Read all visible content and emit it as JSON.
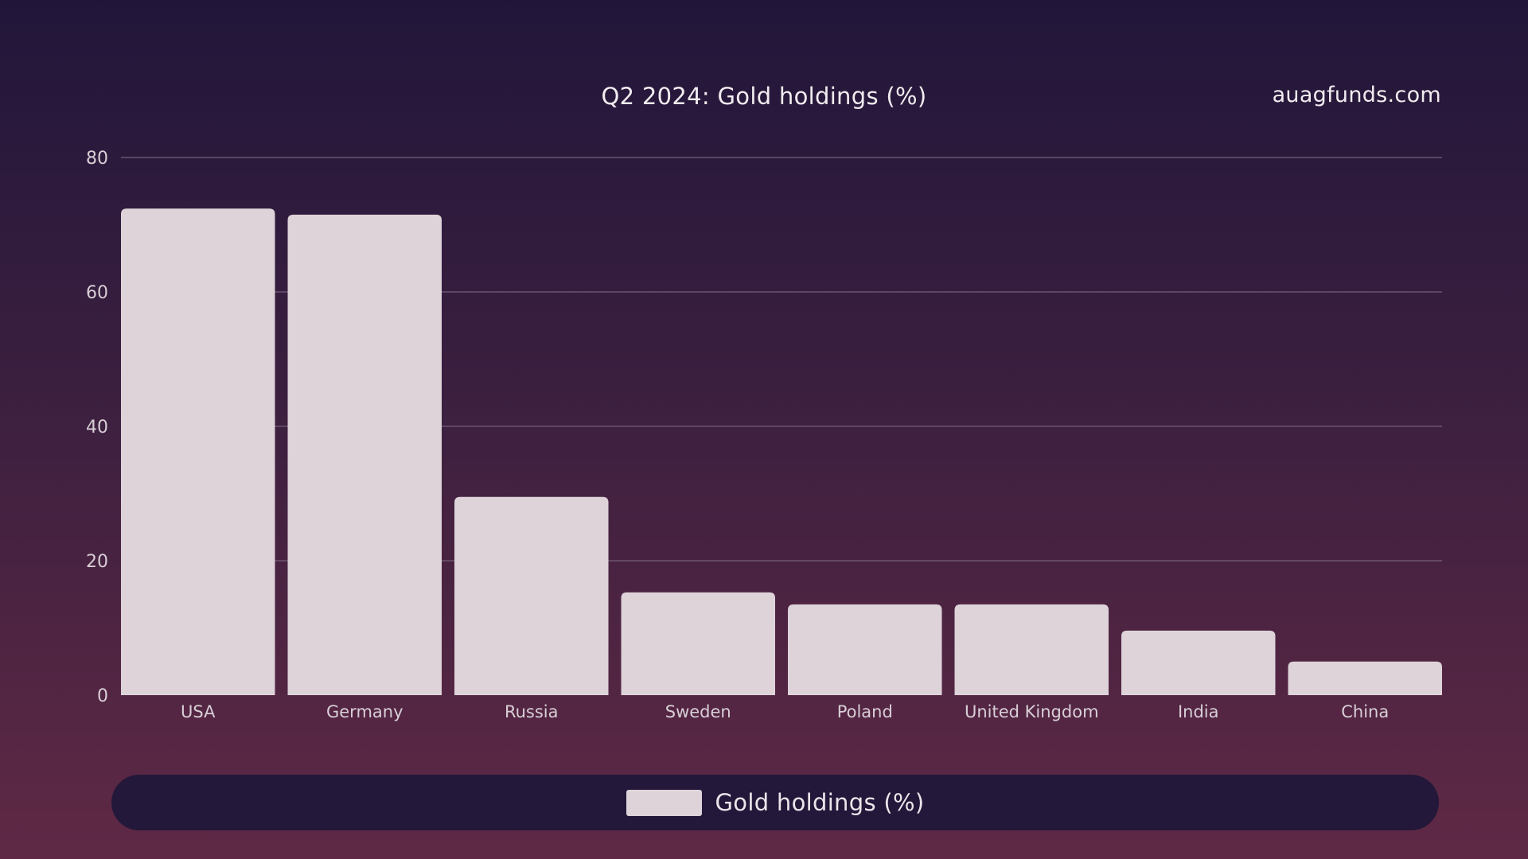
{
  "header": {
    "source": "auagfunds.com"
  },
  "colors": {
    "bar": "#ddd3d9",
    "grid": "#6c5570",
    "tick_text": "#d8cfd6",
    "legend_bg": "#23173a"
  },
  "chart_data": {
    "type": "bar",
    "title": "Q2 2024: Gold holdings (%)",
    "xlabel": "",
    "ylabel": "",
    "categories": [
      "USA",
      "Germany",
      "Russia",
      "Sweden",
      "Poland",
      "United Kingdom",
      "India",
      "China"
    ],
    "series": [
      {
        "name": "Gold holdings (%)",
        "values": [
          72.4,
          71.5,
          29.5,
          15.3,
          13.5,
          13.5,
          9.6,
          5
        ]
      }
    ],
    "ylim": [
      0,
      80
    ],
    "yticks": [
      0,
      20,
      40,
      60,
      80
    ],
    "grid": true,
    "legend_position": "bottom"
  }
}
